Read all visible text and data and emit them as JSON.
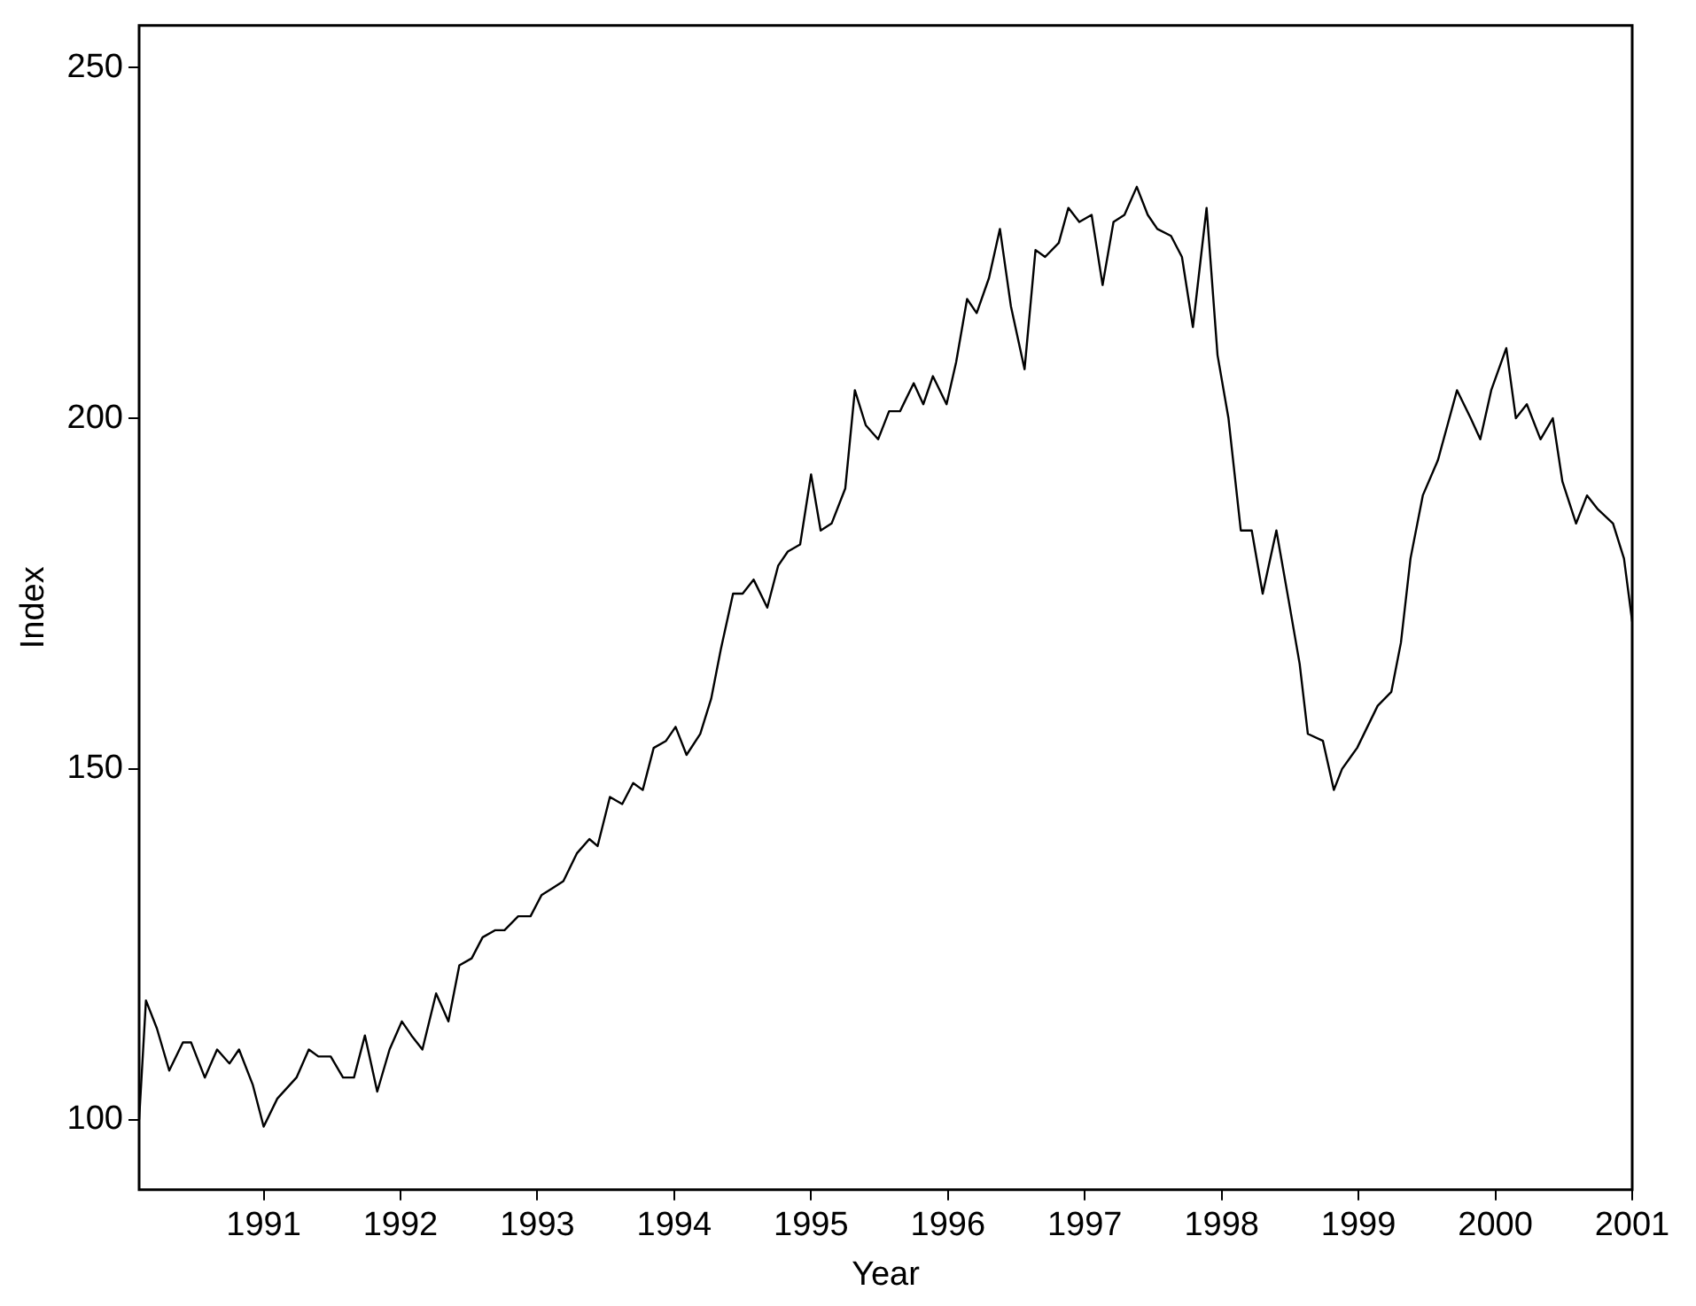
{
  "chart_data": {
    "type": "line",
    "xlabel": "Year",
    "ylabel": "Index",
    "xlim": [
      1990.09,
      2001
    ],
    "ylim": [
      90,
      256
    ],
    "xticks": [
      1991,
      1992,
      1993,
      1994,
      1995,
      1996,
      1997,
      1998,
      1999,
      2000,
      2001
    ],
    "yticks": [
      100,
      150,
      200,
      250
    ],
    "grid": false,
    "legend": false,
    "marker": "none",
    "line_style": "solid",
    "series": [
      {
        "color": "#000000",
        "x": [
          1990.09,
          1990.14,
          1990.22,
          1990.31,
          1990.41,
          1990.47,
          1990.57,
          1990.66,
          1990.75,
          1990.82,
          1990.92,
          1991.0,
          1991.1,
          1991.24,
          1991.33,
          1991.4,
          1991.49,
          1991.58,
          1991.66,
          1991.74,
          1991.83,
          1991.92,
          1992.01,
          1992.08,
          1992.16,
          1992.26,
          1992.35,
          1992.43,
          1992.52,
          1992.6,
          1992.69,
          1992.76,
          1992.86,
          1992.95,
          1993.03,
          1993.11,
          1993.19,
          1993.29,
          1993.38,
          1993.44,
          1993.53,
          1993.62,
          1993.7,
          1993.77,
          1993.85,
          1993.94,
          1994.01,
          1994.09,
          1994.19,
          1994.27,
          1994.34,
          1994.43,
          1994.5,
          1994.58,
          1994.68,
          1994.76,
          1994.83,
          1994.92,
          1995.0,
          1995.07,
          1995.15,
          1995.25,
          1995.32,
          1995.4,
          1995.49,
          1995.57,
          1995.65,
          1995.75,
          1995.82,
          1995.89,
          1995.99,
          1996.06,
          1996.14,
          1996.21,
          1996.3,
          1996.38,
          1996.46,
          1996.56,
          1996.64,
          1996.71,
          1996.81,
          1996.88,
          1996.96,
          1997.05,
          1997.13,
          1997.21,
          1997.29,
          1997.38,
          1997.46,
          1997.53,
          1997.63,
          1997.71,
          1997.79,
          1997.89,
          1997.97,
          1998.05,
          1998.14,
          1998.22,
          1998.3,
          1998.4,
          1998.49,
          1998.57,
          1998.63,
          1998.74,
          1998.82,
          1998.88,
          1998.99,
          1999.14,
          1999.24,
          1999.31,
          1999.38,
          1999.47,
          1999.58,
          1999.65,
          1999.72,
          1999.82,
          1999.89,
          1999.97,
          2000.08,
          2000.15,
          2000.23,
          2000.33,
          2000.42,
          2000.49,
          2000.59,
          2000.67,
          2000.75,
          2000.86,
          2000.94,
          2001.0
        ],
        "values": [
          100,
          117,
          113,
          107,
          111,
          111,
          106,
          110,
          108,
          110,
          105,
          99,
          103,
          106,
          110,
          109,
          109,
          106,
          106,
          112,
          104,
          110,
          114,
          112,
          110,
          118,
          114,
          122,
          123,
          126,
          127,
          127,
          129,
          129,
          132,
          133,
          134,
          138,
          140,
          139,
          146,
          145,
          148,
          147,
          153,
          154,
          156,
          152,
          155,
          160,
          167,
          175,
          175,
          177,
          173,
          179,
          181,
          182,
          192,
          184,
          185,
          190,
          204,
          199,
          197,
          201,
          201,
          205,
          202,
          206,
          202,
          208,
          217,
          215,
          220,
          227,
          216,
          207,
          224,
          223,
          225,
          230,
          228,
          229,
          219,
          228,
          229,
          233,
          229,
          227,
          226,
          223,
          213,
          230,
          209,
          200,
          184,
          184,
          175,
          184,
          174,
          165,
          155,
          154,
          147,
          150,
          153,
          159,
          161,
          168,
          180,
          189,
          194,
          199,
          204,
          200,
          197,
          204,
          210,
          200,
          202,
          197,
          200,
          191,
          185,
          189,
          187,
          185,
          180,
          171
        ]
      }
    ]
  }
}
